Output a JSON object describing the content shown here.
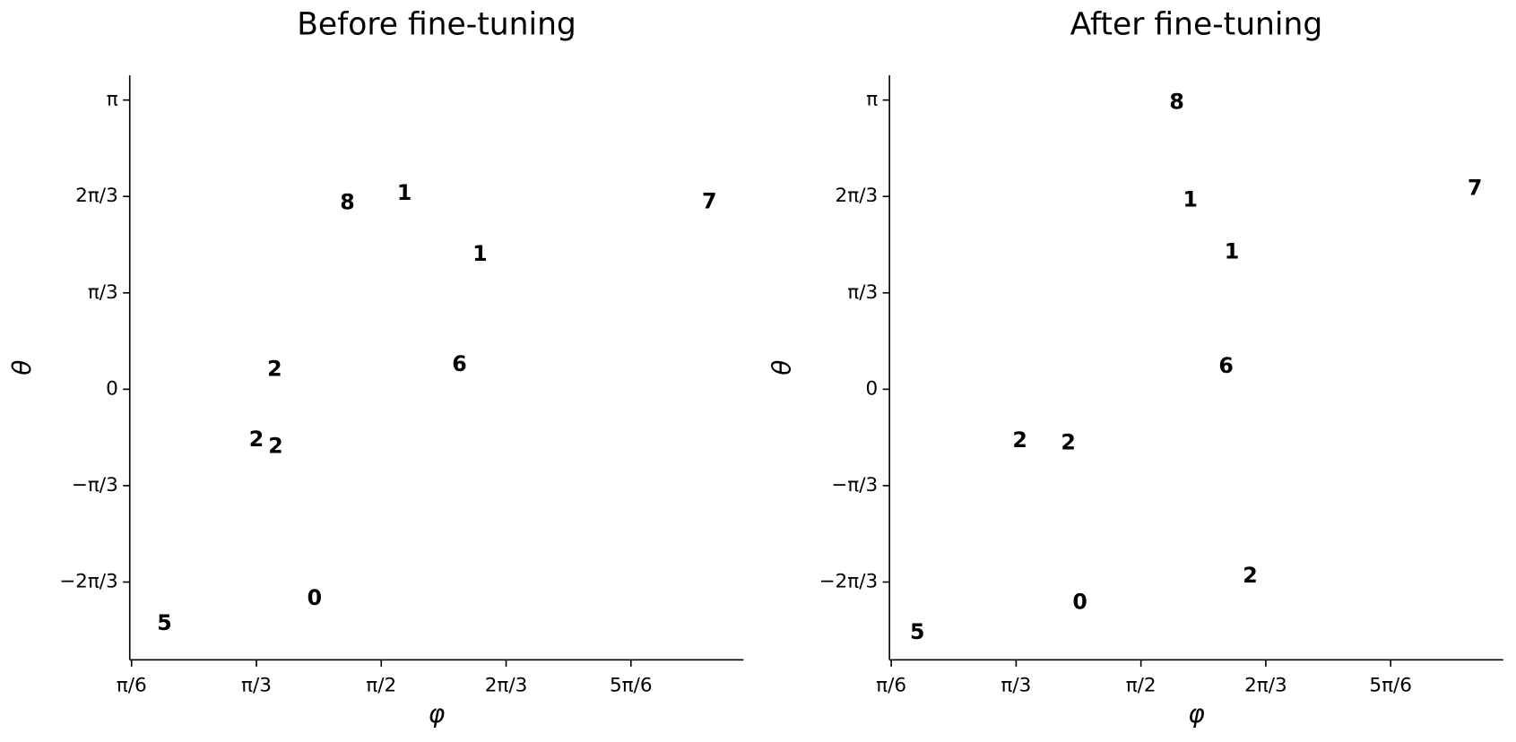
{
  "chart_data": [
    {
      "type": "scatter",
      "title": "Before fine-tuning",
      "x_label": "φ",
      "y_label": "θ",
      "xlim": [
        0.516,
        3.09
      ],
      "ylim": [
        -2.94,
        3.41
      ],
      "xticks": [
        {
          "value": 0.5236,
          "label": "π/6"
        },
        {
          "value": 1.0472,
          "label": "π/3"
        },
        {
          "value": 1.5708,
          "label": "π/2"
        },
        {
          "value": 2.0944,
          "label": "2π/3"
        },
        {
          "value": 2.618,
          "label": "5π/6"
        }
      ],
      "yticks": [
        {
          "value": -2.0944,
          "label": "−2π/3"
        },
        {
          "value": -1.0472,
          "label": "−π/3"
        },
        {
          "value": 0,
          "label": "0"
        },
        {
          "value": 1.0472,
          "label": "π/3"
        },
        {
          "value": 2.0944,
          "label": "2π/3"
        },
        {
          "value": 3.1416,
          "label": "π"
        }
      ],
      "points": [
        {
          "label": "8",
          "color": "#c6c645",
          "x": 1.429,
          "y": 2.017
        },
        {
          "label": "1",
          "color": "#f7973a",
          "x": 1.668,
          "y": 2.122
        },
        {
          "label": "7",
          "color": "#999999",
          "x": 2.947,
          "y": 2.027
        },
        {
          "label": "1",
          "color": "#f7973a",
          "x": 1.985,
          "y": 1.46
        },
        {
          "label": "2",
          "color": "#5cb85c",
          "x": 1.124,
          "y": 0.21
        },
        {
          "label": "6",
          "color": "#e991cc",
          "x": 1.899,
          "y": 0.263
        },
        {
          "label": "2",
          "color": "#5cb85c",
          "x": 1.047,
          "y": -0.557
        },
        {
          "label": "2",
          "color": "#5cb85c",
          "x": 1.128,
          "y": -0.63
        },
        {
          "label": "0",
          "color": "#4c93c9",
          "x": 1.291,
          "y": -2.28
        },
        {
          "label": "5",
          "color": "#a0776f",
          "x": 0.662,
          "y": -2.55
        }
      ]
    },
    {
      "type": "scatter",
      "title": "After fine-tuning",
      "x_label": "φ",
      "y_label": "θ",
      "xlim": [
        0.516,
        3.09
      ],
      "ylim": [
        -2.94,
        3.41
      ],
      "xticks": [
        {
          "value": 0.5236,
          "label": "π/6"
        },
        {
          "value": 1.0472,
          "label": "π/3"
        },
        {
          "value": 1.5708,
          "label": "π/2"
        },
        {
          "value": 2.0944,
          "label": "2π/3"
        },
        {
          "value": 2.618,
          "label": "5π/6"
        }
      ],
      "yticks": [
        {
          "value": -2.0944,
          "label": "−2π/3"
        },
        {
          "value": -1.0472,
          "label": "−π/3"
        },
        {
          "value": 0,
          "label": "0"
        },
        {
          "value": 1.0472,
          "label": "π/3"
        },
        {
          "value": 2.0944,
          "label": "2π/3"
        },
        {
          "value": 3.1416,
          "label": "π"
        }
      ],
      "points": [
        {
          "label": "8",
          "color": "#c6c645",
          "x": 1.721,
          "y": 3.11
        },
        {
          "label": "7",
          "color": "#999999",
          "x": 2.971,
          "y": 2.174
        },
        {
          "label": "1",
          "color": "#f7973a",
          "x": 1.778,
          "y": 2.048
        },
        {
          "label": "1",
          "color": "#f7973a",
          "x": 1.952,
          "y": 1.481
        },
        {
          "label": "6",
          "color": "#e991cc",
          "x": 1.928,
          "y": 0.242
        },
        {
          "label": "2",
          "color": "#5cb85c",
          "x": 1.063,
          "y": -0.567
        },
        {
          "label": "2",
          "color": "#5cb85c",
          "x": 1.266,
          "y": -0.588
        },
        {
          "label": "2",
          "color": "#5cb85c",
          "x": 2.029,
          "y": -2.038
        },
        {
          "label": "0",
          "color": "#4c93c9",
          "x": 1.315,
          "y": -2.321
        },
        {
          "label": "5",
          "color": "#a0776f",
          "x": 0.633,
          "y": -2.647
        }
      ]
    }
  ]
}
